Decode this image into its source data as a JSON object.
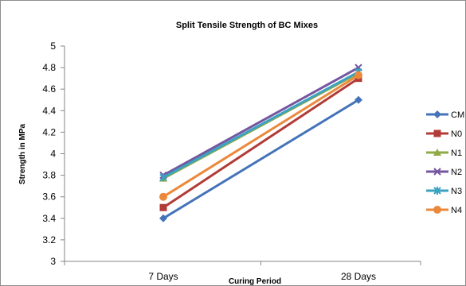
{
  "chart_data": {
    "type": "line",
    "title": "Split Tensile Strength of BC Mixes",
    "xlabel": "Curing Period",
    "ylabel": "Strength in MPa",
    "categories": [
      "7 Days",
      "28 Days"
    ],
    "ylim": [
      3,
      5
    ],
    "yticks": [
      3,
      3.2,
      3.4,
      3.6,
      3.8,
      4,
      4.2,
      4.4,
      4.6,
      4.8,
      5
    ],
    "yticklabels": [
      "3",
      "3.2",
      "3.4",
      "3.6",
      "3.8",
      "4",
      "4.2",
      "4.4",
      "4.6",
      "4.8",
      "5"
    ],
    "grid": false,
    "legend": "right",
    "series": [
      {
        "name": "CM",
        "values": [
          3.4,
          4.5
        ],
        "color": "#4473b9",
        "marker": "diamond"
      },
      {
        "name": "N0",
        "values": [
          3.5,
          4.7
        ],
        "color": "#b13c37",
        "marker": "square"
      },
      {
        "name": "N1",
        "values": [
          3.77,
          4.75
        ],
        "color": "#8faa46",
        "marker": "triangle"
      },
      {
        "name": "N2",
        "values": [
          3.8,
          4.8
        ],
        "color": "#7556a0",
        "marker": "x"
      },
      {
        "name": "N3",
        "values": [
          3.78,
          4.76
        ],
        "color": "#3aa3c1",
        "marker": "star"
      },
      {
        "name": "N4",
        "values": [
          3.6,
          4.73
        ],
        "color": "#ea893c",
        "marker": "circle"
      }
    ]
  }
}
